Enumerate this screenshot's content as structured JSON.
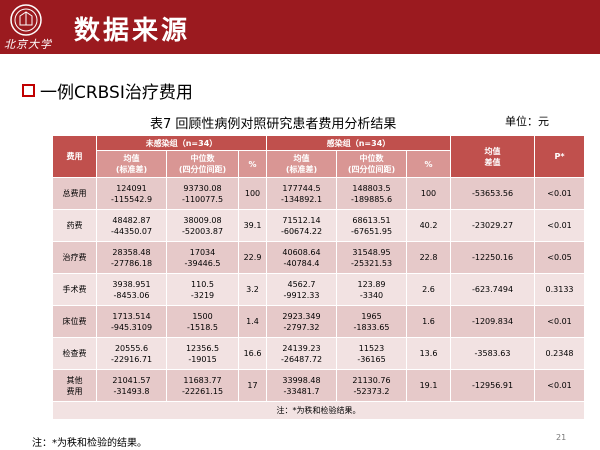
{
  "header": {
    "title": "数据来源",
    "logo_text": "北京大学"
  },
  "subtitle": "一例CRBSI治疗费用",
  "table": {
    "title": "表7 回顾性病例对照研究患者费用分析结果",
    "unit": "单位：元",
    "headers": {
      "cost": "费用",
      "uninfected": "未感染组（n=34）",
      "infected": "感染组（n=34）",
      "mean_diff": [
        "均值",
        "差值"
      ],
      "p": "P*",
      "mean_sd": [
        "均值",
        "(标准差)"
      ],
      "median_iqr": [
        "中位数",
        "(四分位间距)"
      ],
      "percent": "%"
    },
    "rows": [
      {
        "label": [
          "总费用"
        ],
        "u_mean": [
          "124091",
          "-115542.9"
        ],
        "u_median": [
          "93730.08",
          "-110077.5"
        ],
        "u_pct": "100",
        "i_mean": [
          "177744.5",
          "-134892.1"
        ],
        "i_median": [
          "148803.5",
          "-189885.6"
        ],
        "i_pct": "100",
        "diff": "-53653.56",
        "p": "<0.01"
      },
      {
        "label": [
          "药费"
        ],
        "u_mean": [
          "48482.87",
          "-44350.07"
        ],
        "u_median": [
          "38009.08",
          "-52003.87"
        ],
        "u_pct": "39.1",
        "i_mean": [
          "71512.14",
          "-60674.22"
        ],
        "i_median": [
          "68613.51",
          "-67651.95"
        ],
        "i_pct": "40.2",
        "diff": "-23029.27",
        "p": "<0.01"
      },
      {
        "label": [
          "治疗费"
        ],
        "u_mean": [
          "28358.48",
          "-27786.18"
        ],
        "u_median": [
          "17034",
          "-39446.5"
        ],
        "u_pct": "22.9",
        "i_mean": [
          "40608.64",
          "-40784.4"
        ],
        "i_median": [
          "31548.95",
          "-25321.53"
        ],
        "i_pct": "22.8",
        "diff": "-12250.16",
        "p": "<0.05"
      },
      {
        "label": [
          "手术费"
        ],
        "u_mean": [
          "3938.951",
          "-8453.06"
        ],
        "u_median": [
          "110.5",
          "-3219"
        ],
        "u_pct": "3.2",
        "i_mean": [
          "4562.7",
          "-9912.33"
        ],
        "i_median": [
          "123.89",
          "-3340"
        ],
        "i_pct": "2.6",
        "diff": "-623.7494",
        "p": "0.3133"
      },
      {
        "label": [
          "床位费"
        ],
        "u_mean": [
          "1713.514",
          "-945.3109"
        ],
        "u_median": [
          "1500",
          "-1518.5"
        ],
        "u_pct": "1.4",
        "i_mean": [
          "2923.349",
          "-2797.32"
        ],
        "i_median": [
          "1965",
          "-1833.65"
        ],
        "i_pct": "1.6",
        "diff": "-1209.834",
        "p": "<0.01"
      },
      {
        "label": [
          "检查费"
        ],
        "u_mean": [
          "20555.6",
          "-22916.71"
        ],
        "u_median": [
          "12356.5",
          "-19015"
        ],
        "u_pct": "16.6",
        "i_mean": [
          "24139.23",
          "-26487.72"
        ],
        "i_median": [
          "11523",
          "-36165"
        ],
        "i_pct": "13.6",
        "diff": "-3583.63",
        "p": "0.2348"
      },
      {
        "label": [
          "其他",
          "费用"
        ],
        "u_mean": [
          "21041.57",
          "-31493.8"
        ],
        "u_median": [
          "11683.77",
          "-22261.15"
        ],
        "u_pct": "17",
        "i_mean": [
          "33998.48",
          "-33481.7"
        ],
        "i_median": [
          "21130.76",
          "-52373.2"
        ],
        "i_pct": "19.1",
        "diff": "-12956.91",
        "p": "<0.01"
      }
    ],
    "note": "注：*为秩和检验结果。"
  },
  "footnote": "注：*为秩和检验的结果。",
  "page_number": "21",
  "colors": {
    "header_bg": "#9b1a1f",
    "table_header": "#c0504d",
    "table_subheader": "#d99694",
    "row_dark": "#e6c9c9",
    "row_light": "#f2e2e2",
    "bullet": "#c00000"
  }
}
